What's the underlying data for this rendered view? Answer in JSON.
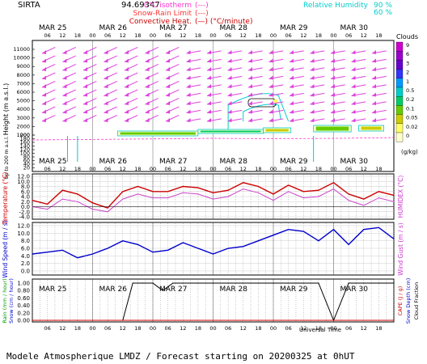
{
  "header": {
    "station": "SIRTA",
    "coords": "94.69347",
    "legend_left": [
      {
        "label": "0°C isotherm",
        "sample": "(---)",
        "color": "#ff33cc"
      },
      {
        "label": "Snow-Rain Limit",
        "sample": "(---)",
        "color": "#ff3333"
      },
      {
        "label": "Convective Heat.",
        "sample": "(—) (°C/minute)",
        "color": "#cc0000"
      }
    ],
    "legend_right": [
      {
        "label": "Relative Humidity",
        "value": "90 %",
        "color": "#00cccc"
      },
      {
        "label": "",
        "value": "60 %",
        "color": "#00cccc"
      }
    ]
  },
  "time_axis": {
    "days": [
      "MAR 25",
      "MAR 26",
      "MAR 27",
      "MAR 28",
      "MAR 29",
      "MAR 30"
    ],
    "hours": [
      "06",
      "12",
      "18",
      "00"
    ],
    "universal_time": "Universal Time"
  },
  "panel_height": {
    "ylabel": "Height (m a.s.l.)",
    "ylabel_lower": "Up to 200 m a.s.l.",
    "ticks": [
      "11000",
      "10000",
      "9000",
      "8000",
      "7000",
      "6000",
      "5000",
      "4000",
      "3000",
      "2000",
      "1000",
      "200",
      "180",
      "160",
      "140",
      "120",
      "100",
      "80",
      "60",
      "40",
      "20"
    ],
    "colorbar_title": "Clouds",
    "colorbar_unit": "(g/kg)",
    "colorbar_ticks": [
      "9",
      "6",
      "3",
      "2",
      "1",
      "0.5",
      "0.2",
      "0.1",
      "0.05",
      "0.02",
      "0"
    ],
    "colorbar_colors": [
      "#cc00cc",
      "#9900cc",
      "#6600cc",
      "#3333ff",
      "#0099ff",
      "#00cccc",
      "#00cc66",
      "#66cc00",
      "#cccc00",
      "#ffff66",
      "#ffffcc"
    ]
  },
  "panel_temp": {
    "ylabel": "Temperature (°C)",
    "ylabel_right": "HUMIDEX (°C)",
    "ticks": [
      "12.0",
      "10.0",
      "8.0",
      "6.0",
      "4.0",
      "2.0",
      "0.0",
      "-2.0",
      "-4.0"
    ]
  },
  "panel_wind": {
    "ylabel": "Wind Speed (m / s)",
    "ylabel_right": "Wind Gust (m / s)",
    "ticks": [
      "12.0",
      "10.0",
      "8.0",
      "6.0",
      "4.0",
      "2.0",
      "0.0"
    ]
  },
  "panel_rain": {
    "ylabel_a": "Rain (mm / hour)",
    "ylabel_b": "Snow (cm / hour)",
    "ylabel_r1": "CAPE (J / g)",
    "ylabel_r2": "Snow Depth (cm)",
    "ylabel_r3": "Cloud Fraction",
    "ticks": [
      "1.00",
      "0.80",
      "0.60",
      "0.40",
      "0.20",
      "0.00"
    ]
  },
  "footer": "Modele Atmospherique LMDZ / Forecast starting on 20200325 at 0hUT",
  "chart_data": [
    {
      "type": "line",
      "title": "",
      "ylabel": "Temperature (°C)",
      "ylim": [
        -4,
        12
      ],
      "x_hours": [
        0,
        6,
        12,
        18,
        24,
        30,
        36,
        42,
        48,
        54,
        60,
        66,
        72,
        78,
        84,
        90,
        96,
        102,
        108,
        114,
        120,
        126,
        132,
        138,
        144
      ],
      "series": [
        {
          "color": "#cc0000",
          "values": [
            2.5,
            1.0,
            6.5,
            5.0,
            1.5,
            -0.5,
            6.0,
            8.0,
            6.0,
            6.0,
            8.0,
            7.5,
            5.5,
            6.5,
            9.5,
            8.0,
            5.0,
            8.5,
            6.0,
            6.5,
            9.5,
            5.0,
            3.0,
            6.0,
            4.5
          ]
        },
        {
          "color": "#cc44cc",
          "values": [
            0.0,
            -1.0,
            3.0,
            2.0,
            -1.0,
            -2.0,
            3.0,
            5.0,
            3.5,
            3.5,
            5.5,
            5.0,
            3.0,
            4.0,
            7.0,
            5.5,
            2.5,
            6.0,
            3.5,
            4.0,
            7.0,
            2.5,
            0.5,
            3.5,
            2.0
          ]
        }
      ]
    },
    {
      "type": "line",
      "title": "",
      "ylabel": "Wind Speed (m / s)",
      "ylim": [
        0,
        12
      ],
      "x_hours": [
        0,
        6,
        12,
        18,
        24,
        30,
        36,
        42,
        48,
        54,
        60,
        66,
        72,
        78,
        84,
        90,
        96,
        102,
        108,
        114,
        120,
        126,
        132,
        138,
        144
      ],
      "series": [
        {
          "color": "#0000cc",
          "values": [
            4.5,
            5.0,
            5.5,
            3.5,
            4.5,
            6.0,
            8.0,
            7.0,
            5.0,
            5.5,
            7.5,
            6.0,
            4.5,
            6.0,
            6.5,
            8.0,
            9.5,
            11.0,
            10.5,
            8.0,
            11.0,
            7.0,
            11.0,
            11.5,
            8.5
          ]
        }
      ]
    },
    {
      "type": "line",
      "title": "",
      "ylabel": "Cloud Fraction",
      "ylim": [
        0,
        1
      ],
      "x_hours": [
        0,
        6,
        12,
        18,
        24,
        30,
        36,
        40,
        44,
        48,
        52,
        56,
        60,
        66,
        72,
        78,
        84,
        90,
        96,
        102,
        108,
        114,
        120,
        126,
        132,
        138,
        144
      ],
      "series": [
        {
          "color": "#000000",
          "values": [
            0,
            0,
            0,
            0,
            0,
            0,
            0,
            1.0,
            1.0,
            1.0,
            0.8,
            1.0,
            1.0,
            1.0,
            1.0,
            1.0,
            1.0,
            1.0,
            1.0,
            1.0,
            1.0,
            1.0,
            0,
            1.0,
            1.0,
            1.0,
            1.0
          ]
        }
      ]
    }
  ]
}
